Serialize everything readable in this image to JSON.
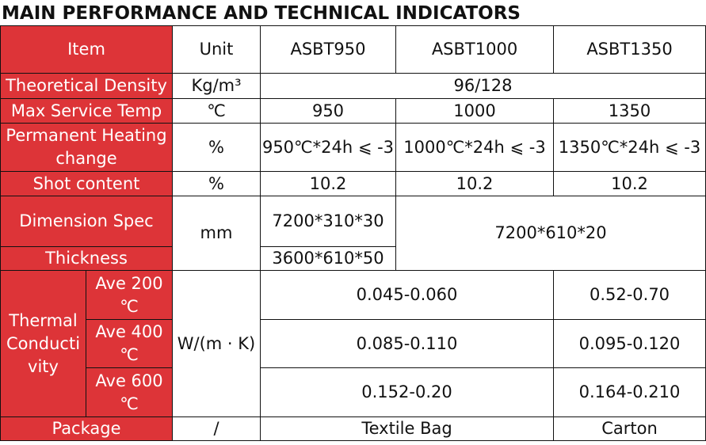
{
  "title": "MAIN PERFORMANCE AND TECHNICAL INDICATORS",
  "colors": {
    "header_bg": "#dd3438",
    "header_text": "#ffffff",
    "border": "#111111"
  },
  "header": {
    "item": "Item",
    "unit": "Unit",
    "models": [
      "ASBT950",
      "ASBT1000",
      "ASBT1350"
    ]
  },
  "rows": {
    "density": {
      "label": "Theoretical Density",
      "unit": "Kg/m³",
      "value": "96/128"
    },
    "max_temp": {
      "label": "Max Service Temp",
      "unit": "℃",
      "values": [
        "950",
        "1000",
        "1350"
      ]
    },
    "heating_change": {
      "label": "Permanent Heating change",
      "unit": "%",
      "values": [
        "950℃*24h ⩽ -3",
        "1000℃*24h ⩽ -3",
        "1350℃*24h ⩽ -3"
      ]
    },
    "shot": {
      "label": "Shot content",
      "unit": "%",
      "values": [
        "10.2",
        "10.2",
        "10.2"
      ]
    },
    "dimension": {
      "label": "Dimension Spec",
      "unit": "mm",
      "asbt950": "7200*310*30",
      "merged": "7200*610*20"
    },
    "thickness": {
      "label": "Thickness",
      "asbt950": "3600*610*50"
    },
    "thermal": {
      "label": "Thermal Conductivity",
      "unit": "W/(m · K)",
      "levels": [
        {
          "label": "Ave 200 ℃",
          "merged": "0.045-0.060",
          "asbt1350": "0.52-0.70"
        },
        {
          "label": "Ave 400 ℃",
          "merged": "0.085-0.110",
          "asbt1350": "0.095-0.120"
        },
        {
          "label": "Ave 600 ℃",
          "merged": "0.152-0.20",
          "asbt1350": "0.164-0.210"
        }
      ]
    },
    "package": {
      "label": "Package",
      "unit": "/",
      "merged": "Textile Bag",
      "asbt1350": "Carton"
    }
  }
}
